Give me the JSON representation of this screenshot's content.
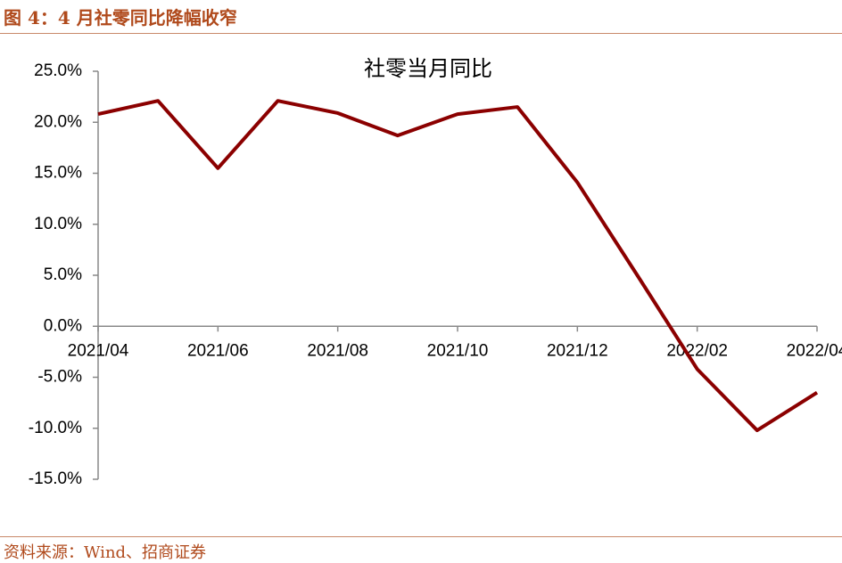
{
  "header": {
    "caption": "图 4：4 月社零同比降幅收窄"
  },
  "footer": {
    "source": "资料来源：Wind、招商证券"
  },
  "chart_data": {
    "type": "line",
    "title": "社零当月同比",
    "categories": [
      "2021/04",
      null,
      "2021/06",
      null,
      "2021/08",
      null,
      "2021/10",
      null,
      "2021/12",
      null,
      "2022/02",
      null,
      "2022/04"
    ],
    "series": [
      {
        "name": "社零当月同比",
        "color": "#8b0000",
        "values": [
          20.8,
          22.1,
          15.5,
          22.1,
          20.9,
          18.7,
          20.8,
          21.5,
          14.1,
          5.0,
          -4.2,
          -10.2,
          -6.5
        ]
      }
    ],
    "ylim": [
      -15,
      25
    ],
    "yticks": [
      {
        "value": -15,
        "label": "-15.0%"
      },
      {
        "value": -10,
        "label": "-10.0%"
      },
      {
        "value": -5,
        "label": "-5.0%"
      },
      {
        "value": 0,
        "label": "0.0%"
      },
      {
        "value": 5,
        "label": "5.0%"
      },
      {
        "value": 10,
        "label": "10.0%"
      },
      {
        "value": 15,
        "label": "15.0%"
      },
      {
        "value": 20,
        "label": "20.0%"
      },
      {
        "value": 25,
        "label": "25.0%"
      }
    ],
    "grid": false
  }
}
